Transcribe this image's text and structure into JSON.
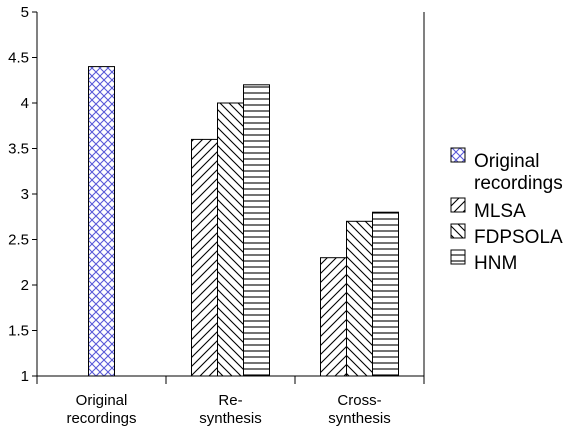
{
  "chart_data": {
    "type": "bar",
    "categories": [
      [
        "Original",
        "recordings"
      ],
      [
        "Re-",
        "synthesis"
      ],
      [
        "Cross-",
        "synthesis"
      ]
    ],
    "series": [
      {
        "name": [
          "Original",
          "recordings"
        ],
        "pattern": "crosshatch",
        "color": "#9999ff",
        "values": [
          4.4,
          null,
          null
        ]
      },
      {
        "name": [
          "MLSA"
        ],
        "pattern": "diag-up",
        "color": "#000000",
        "values": [
          null,
          3.6,
          2.3
        ]
      },
      {
        "name": [
          "FDPSOLA"
        ],
        "pattern": "diag-down",
        "color": "#000000",
        "values": [
          null,
          4.0,
          2.7
        ]
      },
      {
        "name": [
          "HNM"
        ],
        "pattern": "horizontal",
        "color": "#000000",
        "values": [
          null,
          4.2,
          2.8
        ]
      }
    ],
    "yticks": [
      "1",
      "1.5",
      "2",
      "2.5",
      "3",
      "3.5",
      "4",
      "4.5",
      "5"
    ],
    "ylim": [
      1,
      5
    ],
    "grid": false,
    "legend_position": "right"
  }
}
